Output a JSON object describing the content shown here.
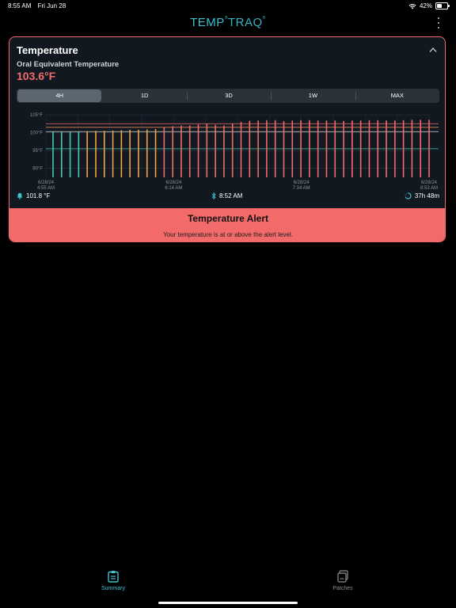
{
  "status_bar": {
    "time": "8:55 AM",
    "date": "Fri Jun 28",
    "battery": "42%"
  },
  "app": {
    "logo_part1": "TEMP",
    "logo_part2": "TRAQ",
    "logo_mark": "®",
    "brand_color": "#3ec3cf"
  },
  "card": {
    "title": "Temperature",
    "subtitle": "Oral Equivalent Temperature",
    "current_value": "103.6°F",
    "alert_color": "#f26b6b",
    "range_tabs": [
      "4H",
      "1D",
      "3D",
      "1W",
      "MAX"
    ],
    "selected_range": "4H"
  },
  "chart_data": {
    "type": "bar",
    "y_ticks": [
      "105°F",
      "100°F",
      "95°F",
      "90°F"
    ],
    "ylim": [
      87.5,
      105
    ],
    "x_labels": [
      {
        "date": "6/28/24",
        "time": "4:55 AM"
      },
      {
        "date": "6/28/24",
        "time": "6:14 AM"
      },
      {
        "date": "6/28/24",
        "time": "7:34 AM"
      },
      {
        "date": "6/28/24",
        "time": "8:53 AM"
      }
    ],
    "reference_lines": [
      {
        "value": 102.5,
        "color": "#f26b6b"
      },
      {
        "value": 101.5,
        "color": "#e6855d"
      },
      {
        "value": 100.3,
        "color": "#d8d8d8"
      },
      {
        "value": 95.5,
        "color": "#46c6b4"
      }
    ],
    "values": [
      100.2,
      100.2,
      100.2,
      100.3,
      100.4,
      100.5,
      100.5,
      100.6,
      100.7,
      100.8,
      100.8,
      100.9,
      101.0,
      101.5,
      101.8,
      102.0,
      102.0,
      102.3,
      102.5,
      102.2,
      102.0,
      102.5,
      103.0,
      103.3,
      103.4,
      103.5,
      103.5,
      103.2,
      103.4,
      103.5,
      103.5,
      103.4,
      103.4,
      103.4,
      103.3,
      103.4,
      103.4,
      103.5,
      103.5,
      103.4,
      103.4,
      103.5,
      103.6,
      103.6,
      103.6
    ],
    "bar_colors": {
      "low": "#46c6b4",
      "mid": "#f2a24a",
      "high": "#f26b6b"
    }
  },
  "info": {
    "alert_threshold": "101.8 °F",
    "last_sync": "8:52 AM",
    "patch_remaining": "37h 48m"
  },
  "alert": {
    "title": "Temperature Alert",
    "message": "Your temperature is at or above the alert level."
  },
  "tabs": [
    {
      "label": "Summary",
      "icon": "clipboard-icon"
    },
    {
      "label": "Patches",
      "icon": "patch-icon"
    }
  ]
}
